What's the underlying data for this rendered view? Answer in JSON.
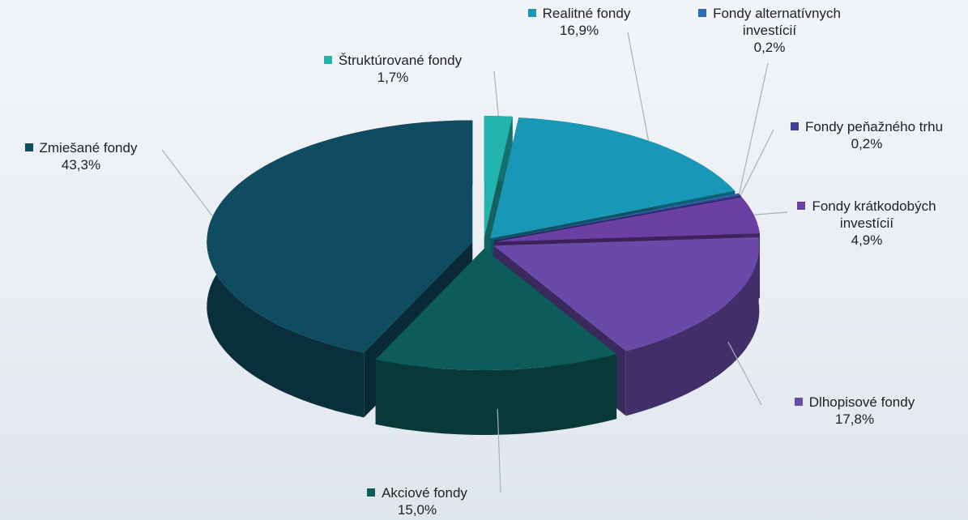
{
  "chart_data": {
    "type": "pie",
    "categories": [
      "Štruktúrované fondy",
      "Realitné fondy",
      "Fondy alternatívnych investícií",
      "Fondy peňažného trhu",
      "Fondy krátkodobých investícií",
      "Dlhopisové fondy",
      "Akciové fondy",
      "Zmiešané fondy"
    ],
    "values": [
      1.7,
      16.9,
      0.2,
      0.2,
      4.9,
      17.8,
      15.0,
      43.3
    ],
    "value_labels": [
      "1,7%",
      "16,9%",
      "0,2%",
      "0,2%",
      "4,9%",
      "17,8%",
      "15,0%",
      "43,3%"
    ],
    "colors": [
      "#22b3ad",
      "#1997b6",
      "#2a6db0",
      "#3d3f95",
      "#6b3fa3",
      "#6a4aa8",
      "#0d5c5a",
      "#0f4c62"
    ]
  }
}
